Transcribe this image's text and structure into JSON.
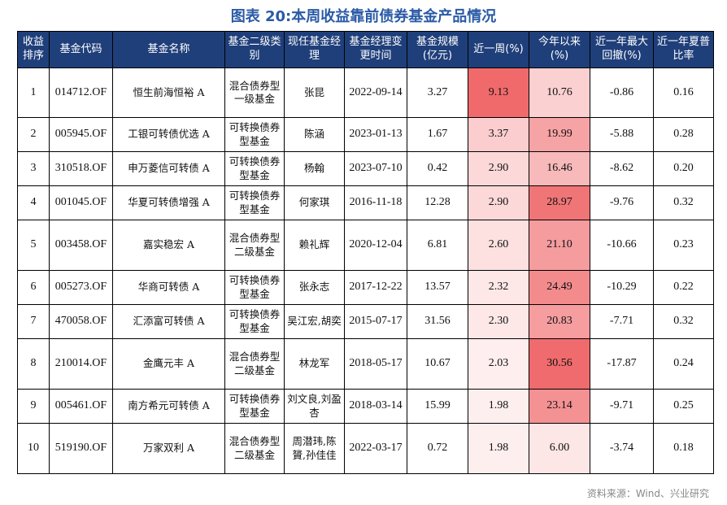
{
  "title": "图表 20:本周收益靠前债券基金产品情况",
  "headers": [
    "收益排序",
    "基金代码",
    "基金名称",
    "基金二级类别",
    "现任基金经理",
    "基金经理变更时间",
    "基金规模(亿元)",
    "近一周(%)",
    "今年以来(%)",
    "近一年最大回撤(%)",
    "近一年夏普比率"
  ],
  "rows": [
    {
      "rank": "1",
      "code": "014712.OF",
      "name": "恒生前海恒裕 A",
      "category": "混合债券型一级基金",
      "manager": "张昆",
      "change_date": "2022-09-14",
      "size": "3.27",
      "week": "9.13",
      "ytd": "10.76",
      "drawdown": "-0.86",
      "sharpe": "0.16",
      "week_color": "#f06a6c",
      "ytd_color": "#fbd0d1"
    },
    {
      "rank": "2",
      "code": "005945.OF",
      "name": "工银可转债优选 A",
      "category": "可转换债券型基金",
      "manager": "陈涵",
      "change_date": "2023-01-13",
      "size": "1.67",
      "week": "3.37",
      "ytd": "19.99",
      "drawdown": "-5.88",
      "sharpe": "0.28",
      "week_color": "#fbcdce",
      "ytd_color": "#f6a3a5"
    },
    {
      "rank": "3",
      "code": "310518.OF",
      "name": "申万菱信可转债 A",
      "category": "可转换债券型基金",
      "manager": "杨翰",
      "change_date": "2023-07-10",
      "size": "0.42",
      "week": "2.90",
      "ytd": "16.46",
      "drawdown": "-8.62",
      "sharpe": "0.20",
      "week_color": "#fcd8d9",
      "ytd_color": "#f8b9ba"
    },
    {
      "rank": "4",
      "code": "001045.OF",
      "name": "华夏可转债增强 A",
      "category": "可转换债券型基金",
      "manager": "何家琪",
      "change_date": "2016-11-18",
      "size": "12.28",
      "week": "2.90",
      "ytd": "28.97",
      "drawdown": "-9.76",
      "sharpe": "0.32",
      "week_color": "#fcd8d9",
      "ytd_color": "#f07576"
    },
    {
      "rank": "5",
      "code": "003458.OF",
      "name": "嘉实稳宏 A",
      "category": "混合债券型二级基金",
      "manager": "赖礼辉",
      "change_date": "2020-12-04",
      "size": "6.81",
      "week": "2.60",
      "ytd": "21.10",
      "drawdown": "-10.66",
      "sharpe": "0.23",
      "week_color": "#fde0e0",
      "ytd_color": "#f59c9e"
    },
    {
      "rank": "6",
      "code": "005273.OF",
      "name": "华商可转债 A",
      "category": "可转换债券型基金",
      "manager": "张永志",
      "change_date": "2017-12-22",
      "size": "13.57",
      "week": "2.32",
      "ytd": "24.49",
      "drawdown": "-10.29",
      "sharpe": "0.22",
      "week_color": "#fde7e7",
      "ytd_color": "#f38b8d"
    },
    {
      "rank": "7",
      "code": "470058.OF",
      "name": "汇添富可转债 A",
      "category": "可转换债券型基金",
      "manager": "吴江宏,胡奕",
      "change_date": "2015-07-17",
      "size": "31.56",
      "week": "2.30",
      "ytd": "20.83",
      "drawdown": "-7.71",
      "sharpe": "0.32",
      "week_color": "#fde7e7",
      "ytd_color": "#f59d9f"
    },
    {
      "rank": "8",
      "code": "210014.OF",
      "name": "金鹰元丰 A",
      "category": "混合债券型二级基金",
      "manager": "林龙军",
      "change_date": "2018-05-17",
      "size": "10.67",
      "week": "2.03",
      "ytd": "30.56",
      "drawdown": "-17.87",
      "sharpe": "0.24",
      "week_color": "#feeeee",
      "ytd_color": "#ef6b6d"
    },
    {
      "rank": "9",
      "code": "005461.OF",
      "name": "南方希元可转债 A",
      "category": "可转换债券型基金",
      "manager": "刘文良,刘盈杏",
      "change_date": "2018-03-14",
      "size": "15.99",
      "week": "1.98",
      "ytd": "23.14",
      "drawdown": "-9.71",
      "sharpe": "0.25",
      "week_color": "#feefef",
      "ytd_color": "#f49193"
    },
    {
      "rank": "10",
      "code": "519190.OF",
      "name": "万家双利 A",
      "category": "混合债券型二级基金",
      "manager": "周潜玮,陈贇,孙佳佳",
      "change_date": "2022-03-17",
      "size": "0.72",
      "week": "1.98",
      "ytd": "6.00",
      "drawdown": "-3.74",
      "sharpe": "0.18",
      "week_color": "#feefef",
      "ytd_color": "#fde6e6"
    }
  ],
  "source": "资料来源：Wind、兴业研究"
}
